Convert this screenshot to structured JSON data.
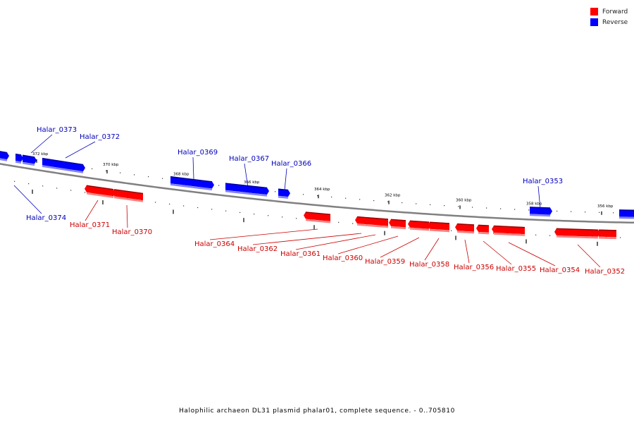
{
  "legend": [
    {
      "label": "Forward",
      "color": "#ff0000"
    },
    {
      "label": "Reverse",
      "color": "#0000ff"
    }
  ],
  "footer": "Halophilic archaeon DL31 plasmid phalar01, complete sequence. - 0..705810",
  "colors": {
    "forward": "#ff0000",
    "reverse": "#0000ff",
    "forward_label": "#cc0000",
    "reverse_label": "#0000bb",
    "backbone": "#808080"
  },
  "ticks": [
    {
      "label": "372 kbp"
    },
    {
      "label": "370 kbp"
    },
    {
      "label": "368 kbp"
    },
    {
      "label": "366 kbp"
    },
    {
      "label": "364 kbp"
    },
    {
      "label": "362 kbp"
    },
    {
      "label": "360 kbp"
    },
    {
      "label": "358 kbp"
    },
    {
      "label": "356 kbp"
    }
  ],
  "genes": [
    {
      "name": "Halar_0374",
      "strand": "reverse",
      "labeled": true
    },
    {
      "name": "Halar_0373",
      "strand": "reverse",
      "labeled": true
    },
    {
      "name": "Halar_0372",
      "strand": "reverse",
      "labeled": true
    },
    {
      "name": "Halar_0371",
      "strand": "forward",
      "labeled": true
    },
    {
      "name": "Halar_0370",
      "strand": "forward",
      "labeled": true
    },
    {
      "name": "Halar_0369",
      "strand": "reverse",
      "labeled": true
    },
    {
      "name": "Halar_0367",
      "strand": "reverse",
      "labeled": true
    },
    {
      "name": "Halar_0366",
      "strand": "reverse",
      "labeled": true
    },
    {
      "name": "Halar_0364",
      "strand": "forward",
      "labeled": true
    },
    {
      "name": "Halar_0362",
      "strand": "forward",
      "labeled": true
    },
    {
      "name": "Halar_0361",
      "strand": "forward",
      "labeled": true
    },
    {
      "name": "Halar_0360",
      "strand": "forward",
      "labeled": true
    },
    {
      "name": "Halar_0359",
      "strand": "forward",
      "labeled": true
    },
    {
      "name": "Halar_0358",
      "strand": "forward",
      "labeled": true
    },
    {
      "name": "Halar_0356",
      "strand": "forward",
      "labeled": true
    },
    {
      "name": "Halar_0355",
      "strand": "forward",
      "labeled": true
    },
    {
      "name": "Halar_0354",
      "strand": "forward",
      "labeled": true
    },
    {
      "name": "Halar_0353",
      "strand": "reverse",
      "labeled": true
    },
    {
      "name": "Halar_0352",
      "strand": "forward",
      "labeled": true
    }
  ]
}
